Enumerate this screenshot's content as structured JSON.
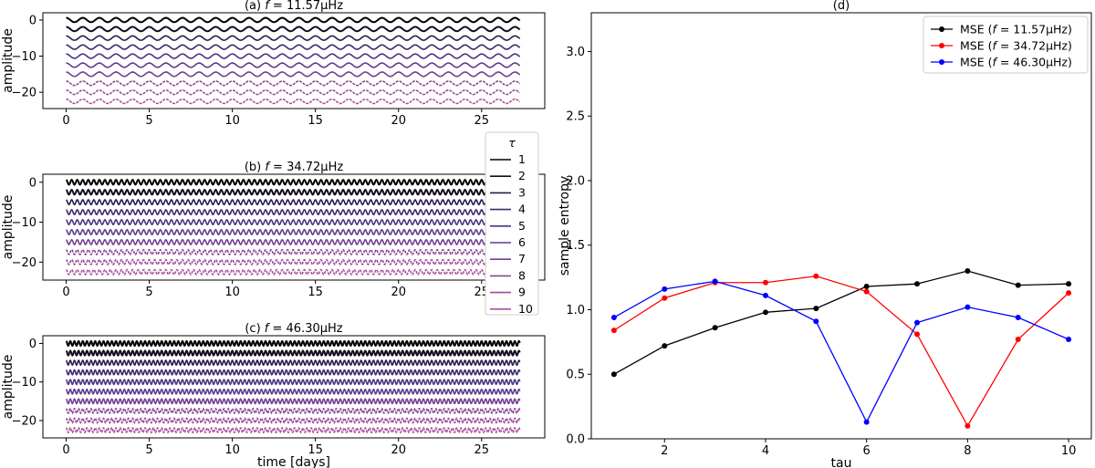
{
  "chart_data": [
    {
      "id": "a",
      "type": "line",
      "title": "(a) f = 11.57μHz",
      "title_parts": [
        "(a) ",
        "f",
        " = 11.57μHz"
      ],
      "xlabel": "",
      "ylabel": "amplitude",
      "xlim": [
        -1.4,
        28.8
      ],
      "ylim": [
        -24.5,
        2.0
      ],
      "xticks": [
        0,
        5,
        10,
        15,
        20,
        25
      ],
      "yticks": [
        0,
        -10,
        -20
      ],
      "frequency_uHz": 11.57,
      "series_count": 10,
      "offset_step": -2.5,
      "amplitude": 0.6,
      "duration_days": 27.3
    },
    {
      "id": "b",
      "type": "line",
      "title": "(b) f = 34.72μHz",
      "title_parts": [
        "(b) ",
        "f",
        " = 34.72μHz"
      ],
      "xlabel": "",
      "ylabel": "amplitude",
      "xlim": [
        -1.4,
        28.8
      ],
      "ylim": [
        -24.5,
        2.0
      ],
      "xticks": [
        0,
        5,
        10,
        15,
        20,
        25
      ],
      "yticks": [
        0,
        -10,
        -20
      ],
      "frequency_uHz": 34.72,
      "series_count": 10,
      "offset_step": -2.5,
      "amplitude": 0.6,
      "duration_days": 27.3
    },
    {
      "id": "c",
      "type": "line",
      "title": "(c) f = 46.30μHz",
      "title_parts": [
        "(c) ",
        "f",
        " = 46.30μHz"
      ],
      "xlabel": "time [days]",
      "ylabel": "amplitude",
      "xlim": [
        -1.4,
        28.8
      ],
      "ylim": [
        -24.5,
        2.0
      ],
      "xticks": [
        0,
        5,
        10,
        15,
        20,
        25
      ],
      "yticks": [
        0,
        -10,
        -20
      ],
      "frequency_uHz": 46.3,
      "series_count": 10,
      "offset_step": -2.5,
      "amplitude": 0.6,
      "duration_days": 27.3
    },
    {
      "id": "d",
      "type": "line",
      "title": "(d)",
      "xlabel": "tau",
      "ylabel": "sample entropy",
      "xlim": [
        0.55,
        10.45
      ],
      "ylim": [
        0.0,
        3.3
      ],
      "xticks": [
        2,
        4,
        6,
        8,
        10
      ],
      "yticks": [
        0.0,
        0.5,
        1.0,
        1.5,
        2.0,
        2.5,
        3.0
      ],
      "ytick_labels": [
        "0.0",
        "0.5",
        "1.0",
        "1.5",
        "2.0",
        "2.5",
        "3.0"
      ],
      "x": [
        1,
        2,
        3,
        4,
        5,
        6,
        7,
        8,
        9,
        10
      ],
      "legend_position": "top-right",
      "series": [
        {
          "name": "MSE (f = 11.57μHz)",
          "name_parts": [
            "MSE (",
            "f",
            " = 11.57μHz)"
          ],
          "color": "#000000",
          "values": [
            0.5,
            0.72,
            0.86,
            0.98,
            1.01,
            1.18,
            1.2,
            1.3,
            1.19,
            1.2
          ]
        },
        {
          "name": "MSE (f = 34.72μHz)",
          "name_parts": [
            "MSE (",
            "f",
            " = 34.72μHz)"
          ],
          "color": "#ff0000",
          "values": [
            0.84,
            1.09,
            1.21,
            1.21,
            1.26,
            1.14,
            0.81,
            0.1,
            0.77,
            1.13
          ]
        },
        {
          "name": "MSE (f = 46.30μHz)",
          "name_parts": [
            "MSE (",
            "f",
            " = 46.30μHz)"
          ],
          "color": "#0000ff",
          "values": [
            0.94,
            1.16,
            1.22,
            1.11,
            0.91,
            0.13,
            0.9,
            1.02,
            0.94,
            0.77
          ]
        }
      ]
    }
  ],
  "tau_legend": {
    "title": "τ",
    "entries": [
      "1",
      "2",
      "3",
      "4",
      "5",
      "6",
      "7",
      "8",
      "9",
      "10"
    ],
    "colors": [
      "#000000",
      "#140b1f",
      "#2a1c4d",
      "#3b2a6e",
      "#4c3482",
      "#5e3d8c",
      "#733f92",
      "#884595",
      "#9a4b98",
      "#a8509a"
    ]
  }
}
